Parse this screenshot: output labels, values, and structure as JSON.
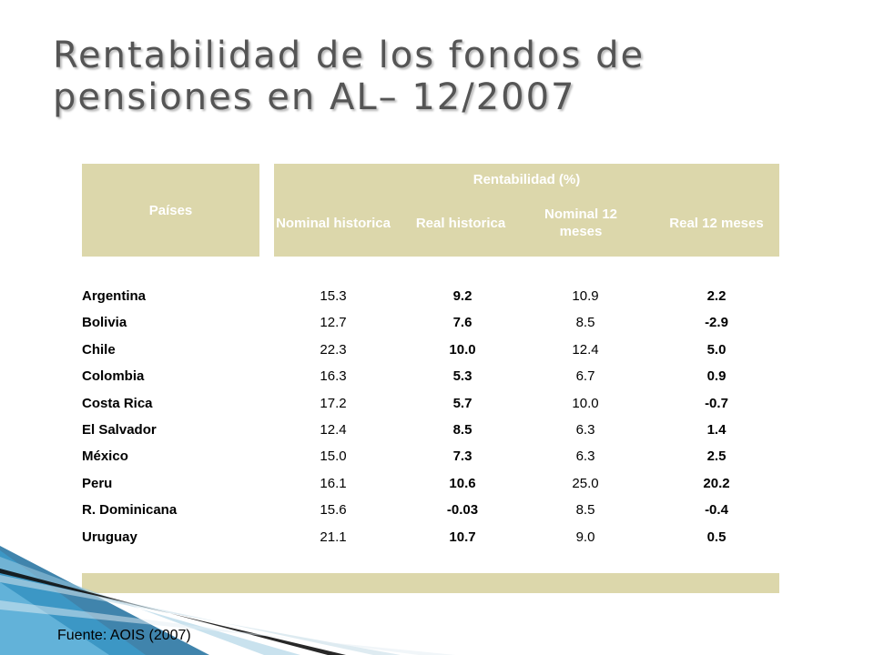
{
  "slide": {
    "title": "Rentabilidad de los fondos de pensiones en AL– 12/2007",
    "source": "Fuente: AOIS (2007)"
  },
  "table": {
    "col_countries": "Países",
    "group_header": "Rentabilidad (%)",
    "sub_headers": [
      "Nominal historica",
      "Real historica",
      "Nominal 12 meses",
      "Real 12 meses"
    ],
    "rows": [
      {
        "country": "Argentina",
        "values": [
          "15.3",
          "9.2",
          "10.9",
          "2.2"
        ]
      },
      {
        "country": "Bolivia",
        "values": [
          "12.7",
          "7.6",
          "8.5",
          "-2.9"
        ]
      },
      {
        "country": "Chile",
        "values": [
          "22.3",
          "10.0",
          "12.4",
          "5.0"
        ]
      },
      {
        "country": "Colombia",
        "values": [
          "16.3",
          "5.3",
          "6.7",
          "0.9"
        ]
      },
      {
        "country": "Costa Rica",
        "values": [
          "17.2",
          "5.7",
          "10.0",
          "-0.7"
        ]
      },
      {
        "country": "El Salvador",
        "values": [
          "12.4",
          "8.5",
          "6.3",
          "1.4"
        ]
      },
      {
        "country": "México",
        "values": [
          "15.0",
          "7.3",
          "6.3",
          "2.5"
        ]
      },
      {
        "country": "Peru",
        "values": [
          "16.1",
          "10.6",
          "25.0",
          "20.2"
        ]
      },
      {
        "country": "R. Dominicana",
        "values": [
          "15.6",
          "-0.03",
          "8.5",
          "-0.4"
        ]
      },
      {
        "country": "Uruguay",
        "values": [
          "21.1",
          "10.7",
          "9.0",
          "0.5"
        ]
      }
    ]
  },
  "colors": {
    "header_fill": "#dcd7ab",
    "header_text": "#ffffff",
    "title_text": "#555555",
    "ribbon_blue": "#2e8bc0"
  }
}
